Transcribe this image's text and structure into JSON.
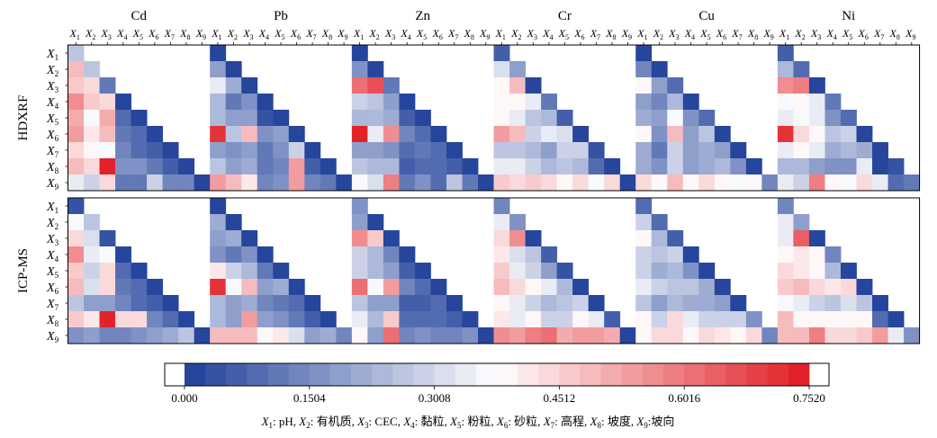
{
  "chart_data": {
    "type": "heatmap",
    "title": "",
    "metals": [
      "Cd",
      "Pb",
      "Zn",
      "Cr",
      "Cu",
      "Ni"
    ],
    "methods": [
      "HDXRF",
      "ICP-MS"
    ],
    "variables": [
      "X1",
      "X2",
      "X3",
      "X4",
      "X5",
      "X6",
      "X7",
      "X8",
      "X9"
    ],
    "variable_labels": [
      {
        "base": "X",
        "sub": "1"
      },
      {
        "base": "X",
        "sub": "2"
      },
      {
        "base": "X",
        "sub": "3"
      },
      {
        "base": "X",
        "sub": "4"
      },
      {
        "base": "X",
        "sub": "5"
      },
      {
        "base": "X",
        "sub": "6"
      },
      {
        "base": "X",
        "sub": "7"
      },
      {
        "base": "X",
        "sub": "8"
      },
      {
        "base": "X",
        "sub": "9"
      }
    ],
    "description": "Lower-triangular matrices (row X_i, column X_j, j <= i) of interaction values between influencing factors for each metal and measurement method; diagonal = single-factor value",
    "colorbar": {
      "min": 0.0,
      "max": 0.752,
      "ticks": [
        0.0,
        0.1504,
        0.3008,
        0.4512,
        0.6016,
        0.752
      ],
      "tick_labels": [
        "0.000",
        "0.1504",
        "0.3008",
        "0.4512",
        "0.6016",
        "0.7520"
      ],
      "colors": [
        "#1f3f99",
        "#ffffff",
        "#e01b22"
      ],
      "levels": 30
    },
    "legend_text": [
      {
        "base": "X",
        "sub": "1",
        "text": ": pH, "
      },
      {
        "base": "X",
        "sub": "2",
        "text": ": 有机质, "
      },
      {
        "base": "X",
        "sub": "3",
        "text": ": CEC, "
      },
      {
        "base": "X",
        "sub": "4",
        "text": ": 黏粒, "
      },
      {
        "base": "X",
        "sub": "5",
        "text": ": 粉粒, "
      },
      {
        "base": "X",
        "sub": "6",
        "text": ": 砂粒, "
      },
      {
        "base": "X",
        "sub": "7",
        "text": ": 高程, "
      },
      {
        "base": "X",
        "sub": "8",
        "text": ": 坡度, "
      },
      {
        "base": "X",
        "sub": "9",
        "text": ":坡向"
      }
    ],
    "panels": [
      {
        "metal": "Cd",
        "method": "HDXRF",
        "matrix": [
          [
            0.26
          ],
          [
            0.49,
            0.26
          ],
          [
            0.47,
            0.45,
            0.11
          ],
          [
            0.57,
            0.47,
            0.44,
            0.0
          ],
          [
            0.52,
            0.37,
            0.52,
            0.1,
            0.0
          ],
          [
            0.54,
            0.41,
            0.49,
            0.12,
            0.1,
            0.0
          ],
          [
            0.43,
            0.39,
            0.37,
            0.15,
            0.1,
            0.07,
            0.0
          ],
          [
            0.5,
            0.44,
            0.75,
            0.16,
            0.17,
            0.12,
            0.07,
            0.0
          ],
          [
            0.33,
            0.28,
            0.44,
            0.11,
            0.12,
            0.28,
            0.13,
            0.13,
            0.0
          ]
        ]
      },
      {
        "metal": "Pb",
        "method": "HDXRF",
        "matrix": [
          [
            0.0
          ],
          [
            0.18,
            0.0
          ],
          [
            0.35,
            0.22,
            0.0
          ],
          [
            0.25,
            0.12,
            0.17,
            0.0
          ],
          [
            0.24,
            0.2,
            0.19,
            0.05,
            0.0
          ],
          [
            0.72,
            0.27,
            0.49,
            0.16,
            0.18,
            0.0
          ],
          [
            0.2,
            0.17,
            0.2,
            0.12,
            0.16,
            0.28,
            0.0
          ],
          [
            0.26,
            0.18,
            0.22,
            0.12,
            0.14,
            0.55,
            0.07,
            0.0
          ],
          [
            0.55,
            0.5,
            0.42,
            0.15,
            0.17,
            0.53,
            0.15,
            0.12,
            0.0
          ]
        ]
      },
      {
        "metal": "Zn",
        "method": "HDXRF",
        "matrix": [
          [
            0.0
          ],
          [
            0.16,
            0.0
          ],
          [
            0.62,
            0.66,
            0.11
          ],
          [
            0.28,
            0.26,
            0.2,
            0.0
          ],
          [
            0.25,
            0.24,
            0.21,
            0.06,
            0.0
          ],
          [
            0.75,
            0.35,
            0.57,
            0.15,
            0.1,
            0.0
          ],
          [
            0.2,
            0.19,
            0.16,
            0.08,
            0.12,
            0.1,
            0.0
          ],
          [
            0.27,
            0.23,
            0.24,
            0.07,
            0.08,
            0.09,
            0.06,
            0.0
          ],
          [
            0.36,
            0.31,
            0.6,
            0.12,
            0.16,
            0.1,
            0.26,
            0.12,
            0.0
          ]
        ]
      },
      {
        "metal": "Cr",
        "method": "HDXRF",
        "matrix": [
          [
            0.07
          ],
          [
            0.32,
            0.18
          ],
          [
            0.38,
            0.48,
            0.0
          ],
          [
            0.38,
            0.38,
            0.33,
            0.12
          ],
          [
            0.4,
            0.34,
            0.27,
            0.24,
            0.07
          ],
          [
            0.55,
            0.49,
            0.3,
            0.33,
            0.31,
            0.0
          ],
          [
            0.27,
            0.27,
            0.24,
            0.2,
            0.3,
            0.28,
            0.03
          ],
          [
            0.35,
            0.34,
            0.3,
            0.23,
            0.27,
            0.25,
            0.1,
            0.0
          ],
          [
            0.46,
            0.44,
            0.47,
            0.43,
            0.39,
            0.43,
            0.37,
            0.44,
            0.0
          ]
        ]
      },
      {
        "metal": "Cu",
        "method": "HDXRF",
        "matrix": [
          [
            0.0
          ],
          [
            0.14,
            0.0
          ],
          [
            0.4,
            0.19,
            0.08
          ],
          [
            0.2,
            0.15,
            0.23,
            0.0
          ],
          [
            0.22,
            0.18,
            0.37,
            0.16,
            0.1
          ],
          [
            0.38,
            0.16,
            0.48,
            0.2,
            0.26,
            0.0
          ],
          [
            0.21,
            0.11,
            0.28,
            0.19,
            0.21,
            0.2,
            0.0
          ],
          [
            0.21,
            0.17,
            0.3,
            0.18,
            0.21,
            0.24,
            0.17,
            0.0
          ],
          [
            0.43,
            0.4,
            0.48,
            0.39,
            0.43,
            0.4,
            0.36,
            0.4,
            0.14
          ]
        ]
      },
      {
        "metal": "Ni",
        "method": "HDXRF",
        "matrix": [
          [
            0.07
          ],
          [
            0.23,
            0.08
          ],
          [
            0.57,
            0.59,
            0.0
          ],
          [
            0.36,
            0.38,
            0.33,
            0.12
          ],
          [
            0.34,
            0.37,
            0.33,
            0.17,
            0.09
          ],
          [
            0.72,
            0.44,
            0.4,
            0.26,
            0.3,
            0.0
          ],
          [
            0.35,
            0.38,
            0.35,
            0.21,
            0.23,
            0.22,
            0.0
          ],
          [
            0.25,
            0.23,
            0.19,
            0.17,
            0.17,
            0.35,
            0.0,
            0.04
          ],
          [
            0.35,
            0.3,
            0.58,
            0.38,
            0.37,
            0.45,
            0.33,
            0.1,
            0.11
          ]
        ]
      },
      {
        "metal": "Cd",
        "method": "ICP-MS",
        "matrix": [
          [
            0.03
          ],
          [
            0.37,
            0.26
          ],
          [
            0.44,
            0.31,
            0.03
          ],
          [
            0.57,
            0.33,
            0.36,
            0.0
          ],
          [
            0.47,
            0.28,
            0.44,
            0.1,
            0.0
          ],
          [
            0.5,
            0.32,
            0.45,
            0.12,
            0.08,
            0.0
          ],
          [
            0.26,
            0.2,
            0.19,
            0.13,
            0.1,
            0.06,
            0.0
          ],
          [
            0.47,
            0.42,
            0.75,
            0.45,
            0.44,
            0.13,
            0.08,
            0.0
          ],
          [
            0.16,
            0.18,
            0.15,
            0.14,
            0.17,
            0.19,
            0.21,
            0.26,
            0.0
          ]
        ]
      },
      {
        "metal": "Pb",
        "method": "ICP-MS",
        "matrix": [
          [
            0.0
          ],
          [
            0.21,
            0.0
          ],
          [
            0.2,
            0.21,
            0.0
          ],
          [
            0.16,
            0.12,
            0.17,
            0.0
          ],
          [
            0.41,
            0.3,
            0.24,
            0.12,
            0.0
          ],
          [
            0.72,
            0.36,
            0.49,
            0.2,
            0.22,
            0.0
          ],
          [
            0.23,
            0.19,
            0.22,
            0.14,
            0.12,
            0.1,
            0.0
          ],
          [
            0.25,
            0.2,
            0.53,
            0.2,
            0.16,
            0.12,
            0.06,
            0.0
          ],
          [
            0.49,
            0.48,
            0.5,
            0.39,
            0.42,
            0.31,
            0.2,
            0.22,
            0.14
          ]
        ]
      },
      {
        "metal": "Zn",
        "method": "ICP-MS",
        "matrix": [
          [
            0.17
          ],
          [
            0.18,
            0.0
          ],
          [
            0.57,
            0.47,
            0.0
          ],
          [
            0.29,
            0.23,
            0.14,
            0.0
          ],
          [
            0.3,
            0.25,
            0.19,
            0.06,
            0.0
          ],
          [
            0.62,
            0.37,
            0.55,
            0.13,
            0.1,
            0.0
          ],
          [
            0.26,
            0.2,
            0.2,
            0.07,
            0.07,
            0.08,
            0.0
          ],
          [
            0.34,
            0.24,
            0.46,
            0.08,
            0.08,
            0.1,
            0.07,
            0.0
          ],
          [
            0.38,
            0.2,
            0.62,
            0.15,
            0.17,
            0.13,
            0.15,
            0.16,
            0.0
          ]
        ]
      },
      {
        "metal": "Cr",
        "method": "ICP-MS",
        "matrix": [
          [
            0.13
          ],
          [
            0.34,
            0.16
          ],
          [
            0.43,
            0.56,
            0.0
          ],
          [
            0.41,
            0.31,
            0.26,
            0.06
          ],
          [
            0.46,
            0.33,
            0.3,
            0.18,
            0.04
          ],
          [
            0.48,
            0.43,
            0.4,
            0.33,
            0.25,
            0.0
          ],
          [
            0.39,
            0.33,
            0.3,
            0.24,
            0.27,
            0.29,
            0.02
          ],
          [
            0.41,
            0.35,
            0.39,
            0.3,
            0.3,
            0.4,
            0.33,
            0.07
          ],
          [
            0.56,
            0.55,
            0.6,
            0.62,
            0.52,
            0.55,
            0.53,
            0.51,
            0.0
          ]
        ]
      },
      {
        "metal": "Cu",
        "method": "ICP-MS",
        "matrix": [
          [
            0.1
          ],
          [
            0.3,
            0.09
          ],
          [
            0.38,
            0.23,
            0.06
          ],
          [
            0.3,
            0.27,
            0.3,
            0.0
          ],
          [
            0.29,
            0.21,
            0.24,
            0.16,
            0.0
          ],
          [
            0.34,
            0.3,
            0.26,
            0.26,
            0.21,
            0.0
          ],
          [
            0.27,
            0.2,
            0.25,
            0.21,
            0.22,
            0.18,
            0.0
          ],
          [
            0.38,
            0.29,
            0.45,
            0.35,
            0.29,
            0.3,
            0.28,
            0.17
          ],
          [
            0.38,
            0.43,
            0.44,
            0.38,
            0.44,
            0.42,
            0.38,
            0.43,
            0.14
          ]
        ]
      },
      {
        "metal": "Ni",
        "method": "ICP-MS",
        "matrix": [
          [
            0.13
          ],
          [
            0.34,
            0.18
          ],
          [
            0.35,
            0.64,
            0.0
          ],
          [
            0.39,
            0.41,
            0.39,
            0.15
          ],
          [
            0.45,
            0.42,
            0.39,
            0.25,
            0.0
          ],
          [
            0.46,
            0.5,
            0.44,
            0.42,
            0.43,
            0.0
          ],
          [
            0.36,
            0.34,
            0.3,
            0.27,
            0.31,
            0.26,
            0.0
          ],
          [
            0.48,
            0.39,
            0.4,
            0.4,
            0.4,
            0.38,
            0.1,
            0.0
          ],
          [
            0.49,
            0.48,
            0.6,
            0.43,
            0.45,
            0.47,
            0.55,
            0.33,
            0.16
          ]
        ]
      }
    ]
  }
}
